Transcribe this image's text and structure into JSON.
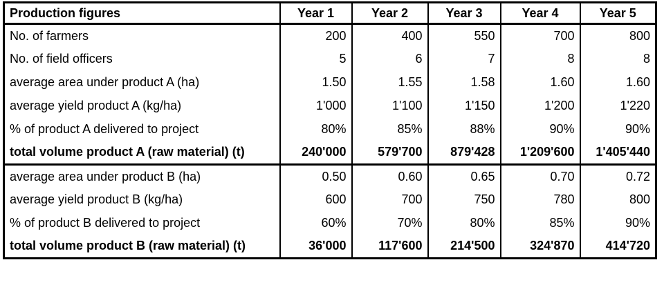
{
  "colors": {
    "background": "#ffffff",
    "border": "#000000",
    "text": "#000000"
  },
  "table": {
    "header": {
      "label": "Production figures",
      "years": [
        "Year 1",
        "Year 2",
        "Year 3",
        "Year 4",
        "Year 5"
      ]
    },
    "sections": [
      {
        "rows": [
          {
            "label": "No. of farmers",
            "values": [
              "200",
              "400",
              "550",
              "700",
              "800"
            ],
            "bold": false
          },
          {
            "label": "No. of field officers",
            "values": [
              "5",
              "6",
              "7",
              "8",
              "8"
            ],
            "bold": false
          },
          {
            "label": "average area under product A (ha)",
            "values": [
              "1.50",
              "1.55",
              "1.58",
              "1.60",
              "1.60"
            ],
            "bold": false
          },
          {
            "label": "average yield product A (kg/ha)",
            "values": [
              "1'000",
              "1'100",
              "1'150",
              "1'200",
              "1'220"
            ],
            "bold": false
          },
          {
            "label": "% of product A delivered to project",
            "values": [
              "80%",
              "85%",
              "88%",
              "90%",
              "90%"
            ],
            "bold": false
          },
          {
            "label": "total volume product A (raw material) (t)",
            "values": [
              "240'000",
              "579'700",
              "879'428",
              "1'209'600",
              "1'405'440"
            ],
            "bold": true
          }
        ]
      },
      {
        "rows": [
          {
            "label": "average area under product B (ha)",
            "values": [
              "0.50",
              "0.60",
              "0.65",
              "0.70",
              "0.72"
            ],
            "bold": false
          },
          {
            "label": "average yield product B (kg/ha)",
            "values": [
              "600",
              "700",
              "750",
              "780",
              "800"
            ],
            "bold": false
          },
          {
            "label": "% of product B delivered to project",
            "values": [
              "60%",
              "70%",
              "80%",
              "85%",
              "90%"
            ],
            "bold": false
          },
          {
            "label": "total volume product B (raw material) (t)",
            "values": [
              "36'000",
              "117'600",
              "214'500",
              "324'870",
              "414'720"
            ],
            "bold": true
          }
        ]
      }
    ]
  },
  "chart_data": {
    "type": "table",
    "title": "Production figures",
    "columns": [
      "Production figures",
      "Year 1",
      "Year 2",
      "Year 3",
      "Year 4",
      "Year 5"
    ],
    "number_format": "apostrophe thousands separator, e.g. 1'000",
    "rows": [
      {
        "label": "No. of farmers",
        "values": [
          200,
          400,
          550,
          700,
          800
        ]
      },
      {
        "label": "No. of field officers",
        "values": [
          5,
          6,
          7,
          8,
          8
        ]
      },
      {
        "label": "average area under product A (ha)",
        "values": [
          1.5,
          1.55,
          1.58,
          1.6,
          1.6
        ]
      },
      {
        "label": "average yield product A (kg/ha)",
        "values": [
          1000,
          1100,
          1150,
          1200,
          1220
        ]
      },
      {
        "label": "% of product A delivered to project (%)",
        "values": [
          80,
          85,
          88,
          90,
          90
        ]
      },
      {
        "label": "total volume product A (raw material) (t)",
        "values": [
          240000,
          579700,
          879428,
          1209600,
          1405440
        ]
      },
      {
        "label": "average area under product B (ha)",
        "values": [
          0.5,
          0.6,
          0.65,
          0.7,
          0.72
        ]
      },
      {
        "label": "average yield product B (kg/ha)",
        "values": [
          600,
          700,
          750,
          780,
          800
        ]
      },
      {
        "label": "% of product B delivered to project (%)",
        "values": [
          60,
          70,
          80,
          85,
          90
        ]
      },
      {
        "label": "total volume product B (raw material) (t)",
        "values": [
          36000,
          117600,
          214500,
          324870,
          414720
        ]
      }
    ]
  }
}
